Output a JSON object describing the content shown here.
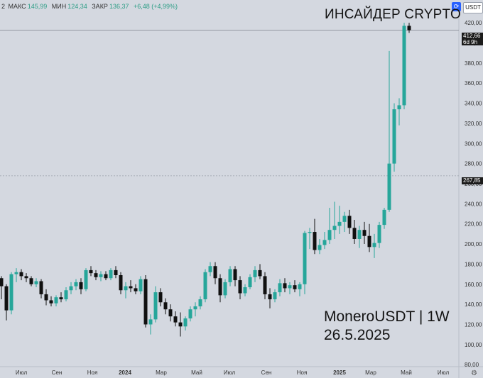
{
  "ohlc": {
    "prefix": "2",
    "high_label": "МАКС",
    "high_value": "145,99",
    "low_label": "МИН",
    "low_value": "124,34",
    "close_label": "ЗАКР",
    "close_value": "136,37",
    "change": "+6,48 (+4,99%)"
  },
  "toolbar": {
    "currency": "USDT",
    "refresh_icon": "refresh-icon"
  },
  "watermark": {
    "title": "ИНСАЙДЕР CRYPTO",
    "pair": "MoneroUSDT | 1W",
    "date": "26.5.2025"
  },
  "price_tags": {
    "current_price": "412,66",
    "countdown": "6d 9h",
    "crosshair_price": "267,85"
  },
  "colors": {
    "up": "#26a69a",
    "down": "#101010",
    "background": "#d4d8e0"
  },
  "chart_data": {
    "type": "candlestick",
    "interval": "1W",
    "y_axis": {
      "ticks": [
        "420,00",
        "400,00",
        "380,00",
        "360,00",
        "340,00",
        "320,00",
        "300,00",
        "280,00",
        "260,00",
        "240,00",
        "220,00",
        "200,00",
        "180,00",
        "160,00",
        "140,00",
        "120,00",
        "100,00",
        "80,00"
      ],
      "range": [
        78,
        430
      ]
    },
    "x_axis": {
      "ticks": [
        "Июл",
        "Сен",
        "Ноя",
        "2024",
        "Мар",
        "Май",
        "Июл",
        "Сен",
        "Ноя",
        "2025",
        "Мар",
        "Май",
        "Июл"
      ]
    },
    "horizontal_lines": [
      412.66,
      267.85
    ],
    "candles": [
      {
        "o": 166,
        "h": 168,
        "l": 145,
        "c": 158
      },
      {
        "o": 158,
        "h": 160,
        "l": 124,
        "c": 134
      },
      {
        "o": 134,
        "h": 172,
        "l": 130,
        "c": 170
      },
      {
        "o": 170,
        "h": 176,
        "l": 162,
        "c": 172
      },
      {
        "o": 172,
        "h": 175,
        "l": 164,
        "c": 168
      },
      {
        "o": 168,
        "h": 171,
        "l": 162,
        "c": 166
      },
      {
        "o": 166,
        "h": 168,
        "l": 158,
        "c": 160
      },
      {
        "o": 160,
        "h": 166,
        "l": 157,
        "c": 163
      },
      {
        "o": 163,
        "h": 165,
        "l": 146,
        "c": 150
      },
      {
        "o": 150,
        "h": 155,
        "l": 139,
        "c": 144
      },
      {
        "o": 144,
        "h": 148,
        "l": 138,
        "c": 141
      },
      {
        "o": 141,
        "h": 149,
        "l": 138,
        "c": 147
      },
      {
        "o": 147,
        "h": 152,
        "l": 142,
        "c": 145
      },
      {
        "o": 145,
        "h": 157,
        "l": 143,
        "c": 154
      },
      {
        "o": 154,
        "h": 162,
        "l": 150,
        "c": 158
      },
      {
        "o": 158,
        "h": 165,
        "l": 154,
        "c": 162
      },
      {
        "o": 162,
        "h": 166,
        "l": 150,
        "c": 155
      },
      {
        "o": 155,
        "h": 176,
        "l": 153,
        "c": 174
      },
      {
        "o": 174,
        "h": 178,
        "l": 168,
        "c": 171
      },
      {
        "o": 171,
        "h": 174,
        "l": 164,
        "c": 167
      },
      {
        "o": 167,
        "h": 173,
        "l": 163,
        "c": 170
      },
      {
        "o": 170,
        "h": 173,
        "l": 164,
        "c": 166
      },
      {
        "o": 166,
        "h": 176,
        "l": 164,
        "c": 174
      },
      {
        "o": 174,
        "h": 178,
        "l": 166,
        "c": 169
      },
      {
        "o": 169,
        "h": 172,
        "l": 150,
        "c": 154
      },
      {
        "o": 154,
        "h": 162,
        "l": 146,
        "c": 158
      },
      {
        "o": 158,
        "h": 164,
        "l": 152,
        "c": 156
      },
      {
        "o": 156,
        "h": 160,
        "l": 150,
        "c": 153
      },
      {
        "o": 153,
        "h": 168,
        "l": 150,
        "c": 165
      },
      {
        "o": 165,
        "h": 169,
        "l": 117,
        "c": 120
      },
      {
        "o": 120,
        "h": 130,
        "l": 110,
        "c": 125
      },
      {
        "o": 125,
        "h": 158,
        "l": 122,
        "c": 152
      },
      {
        "o": 152,
        "h": 156,
        "l": 138,
        "c": 142
      },
      {
        "o": 142,
        "h": 146,
        "l": 130,
        "c": 135
      },
      {
        "o": 135,
        "h": 140,
        "l": 123,
        "c": 128
      },
      {
        "o": 128,
        "h": 133,
        "l": 118,
        "c": 122
      },
      {
        "o": 122,
        "h": 132,
        "l": 108,
        "c": 118
      },
      {
        "o": 118,
        "h": 128,
        "l": 114,
        "c": 126
      },
      {
        "o": 126,
        "h": 138,
        "l": 123,
        "c": 135
      },
      {
        "o": 135,
        "h": 142,
        "l": 128,
        "c": 138
      },
      {
        "o": 138,
        "h": 148,
        "l": 135,
        "c": 145
      },
      {
        "o": 145,
        "h": 175,
        "l": 142,
        "c": 172
      },
      {
        "o": 172,
        "h": 182,
        "l": 168,
        "c": 178
      },
      {
        "o": 178,
        "h": 182,
        "l": 160,
        "c": 166
      },
      {
        "o": 166,
        "h": 170,
        "l": 142,
        "c": 149
      },
      {
        "o": 149,
        "h": 165,
        "l": 146,
        "c": 162
      },
      {
        "o": 162,
        "h": 178,
        "l": 158,
        "c": 175
      },
      {
        "o": 175,
        "h": 178,
        "l": 158,
        "c": 164
      },
      {
        "o": 164,
        "h": 168,
        "l": 145,
        "c": 151
      },
      {
        "o": 151,
        "h": 160,
        "l": 148,
        "c": 157
      },
      {
        "o": 157,
        "h": 170,
        "l": 155,
        "c": 167
      },
      {
        "o": 167,
        "h": 178,
        "l": 162,
        "c": 174
      },
      {
        "o": 174,
        "h": 180,
        "l": 165,
        "c": 168
      },
      {
        "o": 168,
        "h": 172,
        "l": 145,
        "c": 150
      },
      {
        "o": 150,
        "h": 156,
        "l": 136,
        "c": 145
      },
      {
        "o": 145,
        "h": 155,
        "l": 142,
        "c": 152
      },
      {
        "o": 152,
        "h": 165,
        "l": 148,
        "c": 161
      },
      {
        "o": 161,
        "h": 166,
        "l": 152,
        "c": 156
      },
      {
        "o": 156,
        "h": 162,
        "l": 150,
        "c": 159
      },
      {
        "o": 159,
        "h": 164,
        "l": 152,
        "c": 155
      },
      {
        "o": 155,
        "h": 162,
        "l": 148,
        "c": 160
      },
      {
        "o": 160,
        "h": 213,
        "l": 150,
        "c": 211
      },
      {
        "o": 211,
        "h": 216,
        "l": 195,
        "c": 212
      },
      {
        "o": 212,
        "h": 225,
        "l": 190,
        "c": 194
      },
      {
        "o": 194,
        "h": 205,
        "l": 190,
        "c": 199
      },
      {
        "o": 199,
        "h": 212,
        "l": 195,
        "c": 204
      },
      {
        "o": 204,
        "h": 236,
        "l": 200,
        "c": 214
      },
      {
        "o": 214,
        "h": 242,
        "l": 205,
        "c": 218
      },
      {
        "o": 218,
        "h": 238,
        "l": 210,
        "c": 222
      },
      {
        "o": 222,
        "h": 232,
        "l": 212,
        "c": 228
      },
      {
        "o": 228,
        "h": 234,
        "l": 210,
        "c": 216
      },
      {
        "o": 216,
        "h": 224,
        "l": 200,
        "c": 205
      },
      {
        "o": 205,
        "h": 218,
        "l": 196,
        "c": 214
      },
      {
        "o": 214,
        "h": 222,
        "l": 200,
        "c": 208
      },
      {
        "o": 208,
        "h": 220,
        "l": 192,
        "c": 197
      },
      {
        "o": 197,
        "h": 210,
        "l": 186,
        "c": 201
      },
      {
        "o": 201,
        "h": 222,
        "l": 196,
        "c": 219
      },
      {
        "o": 219,
        "h": 236,
        "l": 215,
        "c": 234
      },
      {
        "o": 234,
        "h": 392,
        "l": 232,
        "c": 280
      },
      {
        "o": 280,
        "h": 340,
        "l": 272,
        "c": 334
      },
      {
        "o": 334,
        "h": 345,
        "l": 318,
        "c": 338
      },
      {
        "o": 338,
        "h": 420,
        "l": 334,
        "c": 417
      },
      {
        "o": 417,
        "h": 420,
        "l": 410,
        "c": 412.66
      }
    ]
  }
}
